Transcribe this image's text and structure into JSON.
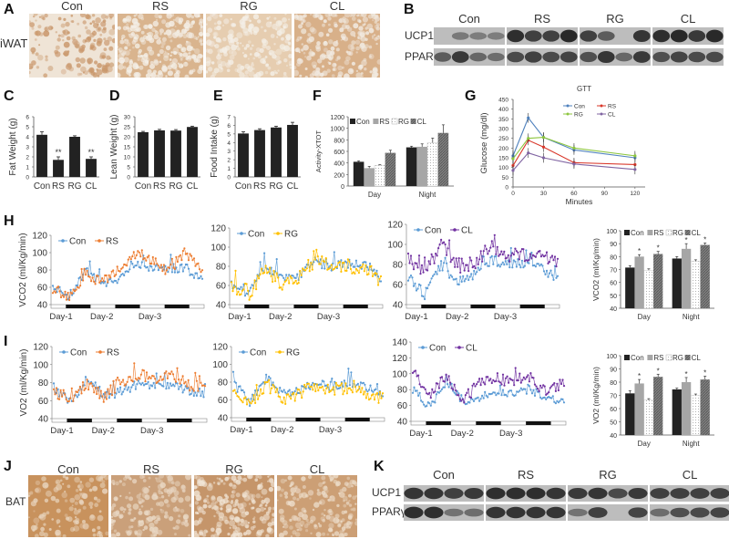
{
  "groups": [
    "Con",
    "RS",
    "RG",
    "CL"
  ],
  "colors": {
    "Con": "#5b9bd5",
    "RS": "#ed7d31",
    "RG": "#ffc000",
    "CL": "#7030a0",
    "gtt_Con": "#4f81bd",
    "gtt_RS": "#d9372a",
    "gtt_RG": "#8dc63f",
    "gtt_CL": "#8064a2",
    "bar_dark": "#222222",
    "bar_gray": "#a6a6a6",
    "bar_dots": "#ffffff",
    "bar_hatch": "#7f7f7f"
  },
  "panels": {
    "A": {
      "letter": "A",
      "row_label": "iWAT",
      "titles": [
        "Con",
        "RS",
        "RG",
        "CL"
      ]
    },
    "B": {
      "letter": "B",
      "titles": [
        "Con",
        "RS",
        "RG",
        "CL"
      ],
      "rows": [
        "UCP1",
        "PPARγ"
      ]
    },
    "C": {
      "letter": "C"
    },
    "D": {
      "letter": "D"
    },
    "E": {
      "letter": "E"
    },
    "F": {
      "letter": "F"
    },
    "G": {
      "letter": "G"
    },
    "H": {
      "letter": "H"
    },
    "I": {
      "letter": "I"
    },
    "J": {
      "letter": "J",
      "row_label": "BAT",
      "titles": [
        "Con",
        "RS",
        "RG",
        "CL"
      ]
    },
    "K": {
      "letter": "K",
      "titles": [
        "Con",
        "RS",
        "RG",
        "CL"
      ],
      "rows": [
        "UCP1",
        "PPARγ"
      ]
    }
  },
  "chart_data": [
    {
      "id": "C",
      "type": "bar",
      "title": "",
      "categories": [
        "Con",
        "RS",
        "RG",
        "CL"
      ],
      "values": [
        4.2,
        1.7,
        4.0,
        1.8
      ],
      "errors": [
        0.3,
        0.3,
        0.1,
        0.2
      ],
      "annotations": [
        "",
        "**",
        "",
        "**"
      ],
      "xlabel": "",
      "ylabel": "Fat Weight (g)",
      "ylim": [
        0,
        6
      ],
      "yticks": [
        0,
        1,
        2,
        3,
        4,
        5,
        6
      ]
    },
    {
      "id": "D",
      "type": "bar",
      "title": "",
      "categories": [
        "Con",
        "RS",
        "RG",
        "CL"
      ],
      "values": [
        22.3,
        23.2,
        23.1,
        24.9
      ],
      "errors": [
        0.4,
        0.5,
        0.5,
        0.4
      ],
      "xlabel": "",
      "ylabel": "Lean Weight (g)",
      "ylim": [
        0,
        30
      ],
      "yticks": [
        0,
        5,
        10,
        15,
        20,
        25,
        30
      ]
    },
    {
      "id": "E",
      "type": "bar",
      "title": "",
      "categories": [
        "Con",
        "RS",
        "RG",
        "CL"
      ],
      "values": [
        5.05,
        5.45,
        5.75,
        6.05
      ],
      "errors": [
        0.2,
        0.15,
        0.15,
        0.3
      ],
      "xlabel": "",
      "ylabel": "Food Intake (g)",
      "ylim": [
        0,
        7
      ],
      "yticks": [
        0,
        1,
        2,
        3,
        4,
        5,
        6,
        7
      ]
    },
    {
      "id": "F",
      "type": "bar",
      "title": "",
      "categories": [
        "Day",
        "Night"
      ],
      "series": [
        {
          "name": "Con",
          "values": [
            420,
            670
          ],
          "errors": [
            15,
            20
          ]
        },
        {
          "name": "RS",
          "values": [
            310,
            680
          ],
          "errors": [
            30,
            50
          ]
        },
        {
          "name": "RG",
          "values": [
            360,
            750
          ],
          "errors": [
            10,
            80
          ]
        },
        {
          "name": "CL",
          "values": [
            575,
            920
          ],
          "errors": [
            45,
            140
          ]
        }
      ],
      "xlabel": "",
      "ylabel": "Activity-XTOT",
      "ylim": [
        0,
        1200
      ],
      "yticks": [
        0,
        200,
        400,
        600,
        800,
        1000,
        1200
      ],
      "legend": "top"
    },
    {
      "id": "G",
      "type": "line",
      "title": "GTT",
      "x": [
        0,
        15,
        30,
        60,
        120
      ],
      "series": [
        {
          "name": "Con",
          "values": [
            160,
            355,
            255,
            190,
            150
          ]
        },
        {
          "name": "RS",
          "values": [
            110,
            240,
            205,
            125,
            115
          ]
        },
        {
          "name": "RG",
          "values": [
            145,
            250,
            255,
            200,
            160
          ]
        },
        {
          "name": "CL",
          "values": [
            85,
            175,
            150,
            118,
            90
          ]
        }
      ],
      "errors": 25,
      "xlabel": "Minutes",
      "ylabel": "Glucose (mg/dl)",
      "xlim": [
        0,
        130
      ],
      "xticks": [
        0,
        30,
        60,
        90,
        120
      ],
      "ylim": [
        0,
        450
      ],
      "yticks": [
        0,
        50,
        100,
        150,
        200,
        250,
        300,
        350,
        400,
        450
      ],
      "legend": "top-right"
    },
    {
      "id": "H1",
      "type": "line",
      "ylabel": "VCO2 (ml/Kg/min)",
      "series_names": [
        "Con",
        "RS"
      ],
      "ylim": [
        40,
        120
      ],
      "yticks": [
        40,
        60,
        80,
        100,
        120
      ],
      "xticklabels": [
        "Day-1",
        "Day-2",
        "Day-3"
      ],
      "profile": {
        "Con": [
          60,
          50,
          80,
          65,
          70,
          88,
          82,
          82,
          82,
          68
        ],
        "RS": [
          58,
          48,
          78,
          65,
          82,
          100,
          92,
          78,
          100,
          75
        ]
      }
    },
    {
      "id": "H2",
      "type": "line",
      "ylabel": "",
      "series_names": [
        "Con",
        "RG"
      ],
      "ylim": [
        40,
        120
      ],
      "yticks": [
        40,
        60,
        80,
        100,
        120
      ],
      "xticklabels": [
        "Day-1",
        "Day-2",
        "Day-3"
      ],
      "profile": {
        "Con": [
          62,
          50,
          80,
          68,
          70,
          85,
          80,
          82,
          82,
          68
        ],
        "RG": [
          60,
          48,
          76,
          62,
          68,
          85,
          80,
          78,
          80,
          65
        ]
      }
    },
    {
      "id": "H3",
      "type": "line",
      "ylabel": "",
      "series_names": [
        "Con",
        "CL"
      ],
      "ylim": [
        40,
        120
      ],
      "yticks": [
        40,
        60,
        80,
        100,
        120
      ],
      "xticklabels": [
        "Day-1",
        "Day-2",
        "Day-3"
      ],
      "profile": {
        "Con": [
          68,
          50,
          80,
          62,
          70,
          85,
          80,
          82,
          78,
          65
        ],
        "CL": [
          85,
          72,
          100,
          78,
          82,
          98,
          88,
          90,
          92,
          80
        ]
      }
    },
    {
      "id": "H4",
      "type": "bar",
      "ylabel": "VCO2 (ml/Kg/min)",
      "categories": [
        "Day",
        "Night"
      ],
      "series": [
        {
          "name": "Con",
          "values": [
            71.5,
            78.5
          ],
          "errors": [
            1.5,
            1.5
          ]
        },
        {
          "name": "RS",
          "values": [
            80,
            86
          ],
          "errors": [
            1.5,
            4
          ]
        },
        {
          "name": "RG",
          "values": [
            69.5,
            76.5
          ],
          "errors": [
            1,
            1
          ]
        },
        {
          "name": "CL",
          "values": [
            82,
            89
          ],
          "errors": [
            2,
            1.5
          ]
        }
      ],
      "annotations": {
        "RS": [
          "*",
          "*"
        ],
        "RG": [
          "",
          ""
        ],
        "CL": [
          "*",
          "*"
        ]
      },
      "ylim": [
        40,
        100
      ],
      "yticks": [
        40,
        50,
        60,
        70,
        80,
        90,
        100
      ],
      "legend": "top"
    },
    {
      "id": "I1",
      "type": "line",
      "ylabel": "VO2 (ml/Kg/min)",
      "series_names": [
        "Con",
        "RS"
      ],
      "ylim": [
        40,
        120
      ],
      "yticks": [
        40,
        60,
        80,
        100,
        120
      ],
      "xticklabels": [
        "Day-1",
        "Day-2",
        "Day-3"
      ],
      "profile": {
        "Con": [
          75,
          58,
          85,
          65,
          70,
          78,
          75,
          78,
          70,
          68
        ],
        "RS": [
          72,
          60,
          80,
          65,
          82,
          88,
          85,
          88,
          78,
          75
        ]
      }
    },
    {
      "id": "I2",
      "type": "line",
      "ylabel": "",
      "series_names": [
        "Con",
        "RG"
      ],
      "ylim": [
        40,
        120
      ],
      "yticks": [
        40,
        60,
        80,
        100,
        120
      ],
      "xticklabels": [
        "Day-1",
        "Day-2",
        "Day-3"
      ],
      "profile": {
        "Con": [
          78,
          58,
          85,
          68,
          72,
          78,
          75,
          80,
          75,
          68
        ],
        "RG": [
          72,
          55,
          78,
          60,
          68,
          75,
          72,
          74,
          68,
          62
        ]
      }
    },
    {
      "id": "I3",
      "type": "line",
      "ylabel": "",
      "series_names": [
        "Con",
        "CL"
      ],
      "ylim": [
        40,
        140
      ],
      "yticks": [
        40,
        60,
        80,
        100,
        120,
        140
      ],
      "xticklabels": [
        "Day-1",
        "Day-2",
        "Day-3"
      ],
      "profile": {
        "Con": [
          80,
          58,
          90,
          65,
          70,
          78,
          75,
          80,
          70,
          65
        ],
        "CL": [
          105,
          70,
          98,
          65,
          90,
          95,
          88,
          95,
          75,
          90
        ]
      }
    },
    {
      "id": "I4",
      "type": "bar",
      "ylabel": "VO2 (ml/Kg/min)",
      "categories": [
        "Day",
        "Night"
      ],
      "series": [
        {
          "name": "Con",
          "values": [
            71.5,
            74.5
          ],
          "errors": [
            2,
            1
          ]
        },
        {
          "name": "RS",
          "values": [
            79,
            80
          ],
          "errors": [
            3,
            3.5
          ]
        },
        {
          "name": "RG",
          "values": [
            66.5,
            70
          ],
          "errors": [
            1,
            1
          ]
        },
        {
          "name": "CL",
          "values": [
            84,
            82
          ],
          "errors": [
            2,
            2.5
          ]
        }
      ],
      "annotations": {
        "RS": [
          "*",
          "*"
        ],
        "RG": [
          "",
          ""
        ],
        "CL": [
          "*",
          "*"
        ]
      },
      "ylim": [
        40,
        100
      ],
      "yticks": [
        40,
        50,
        60,
        70,
        80,
        90,
        100
      ],
      "legend": "top"
    }
  ]
}
